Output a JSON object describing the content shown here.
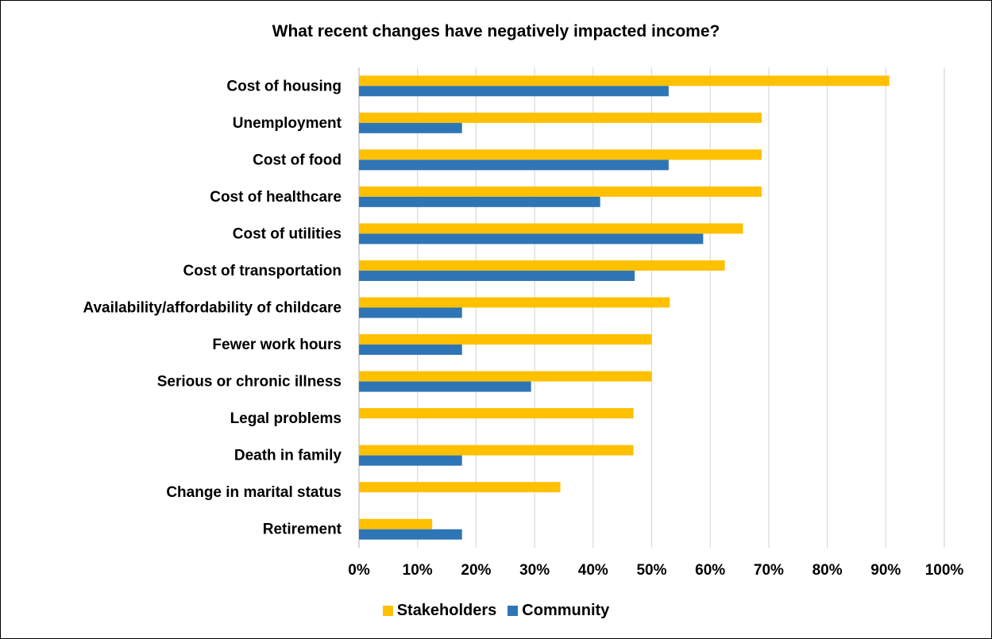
{
  "chart_data": {
    "type": "bar",
    "orientation": "horizontal",
    "title": "What recent changes have negatively impacted income?",
    "categories": [
      "Cost of housing",
      "Unemployment",
      "Cost of food",
      "Cost of healthcare",
      "Cost of utilities",
      "Cost of transportation",
      "Availability/affordability of childcare",
      "Fewer work hours",
      "Serious or chronic illness",
      "Legal problems",
      "Death in family",
      "Change in marital status",
      "Retirement"
    ],
    "series": [
      {
        "name": "Stakeholders",
        "color": "#FFC000",
        "values": [
          90.6,
          68.8,
          68.8,
          68.8,
          65.6,
          62.5,
          53.1,
          50.0,
          50.0,
          46.9,
          46.9,
          34.4,
          12.5
        ]
      },
      {
        "name": "Community",
        "color": "#2E75B6",
        "values": [
          52.9,
          17.6,
          52.9,
          41.2,
          58.8,
          47.1,
          17.6,
          17.6,
          29.4,
          0,
          17.6,
          0,
          17.6
        ]
      }
    ],
    "xlim": [
      0,
      100
    ],
    "xticks": [
      "0%",
      "10%",
      "20%",
      "30%",
      "40%",
      "50%",
      "60%",
      "70%",
      "80%",
      "90%",
      "100%"
    ],
    "grid": true,
    "legend_position": "bottom"
  }
}
